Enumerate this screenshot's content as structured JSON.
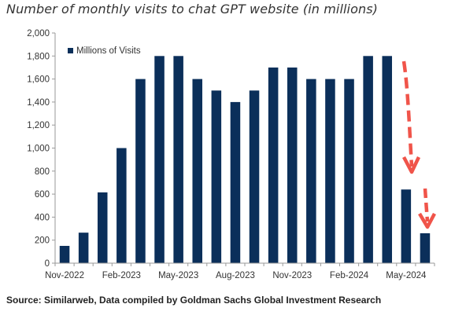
{
  "title": "Number of monthly visits to chat GPT website (in millions)",
  "source": "Source: Similarweb, Data compiled by Goldman Sachs Global Investment Research",
  "colors": {
    "bar": "#0b2f5a",
    "arrow": "#f0544a",
    "axis": "#9a9a9a"
  },
  "chart_data": {
    "type": "bar",
    "series": [
      {
        "name": "Millions of Visits",
        "values": [
          150,
          265,
          615,
          1000,
          1600,
          1800,
          1800,
          1600,
          1500,
          1400,
          1500,
          1700,
          1700,
          1600,
          1600,
          1600,
          1800,
          1800,
          640,
          260
        ]
      }
    ],
    "x_tick_labels": [
      "Nov-2022",
      "Feb-2023",
      "May-2023",
      "Aug-2023",
      "Nov-2023",
      "Feb-2024",
      "May-2024"
    ],
    "x_tick_category_index": [
      0,
      3,
      6,
      9,
      12,
      15,
      18
    ],
    "y_ticks": [
      "0",
      "200",
      "400",
      "600",
      "800",
      "1,000",
      "1,200",
      "1,400",
      "1,600",
      "1,800",
      "2,000"
    ],
    "ylim": [
      0,
      2000
    ],
    "legend_position": "top-left",
    "annotations": [
      "red dashed downward arrow over May-2024 bar",
      "red dashed downward arrow over Jun-2024 bar"
    ]
  }
}
